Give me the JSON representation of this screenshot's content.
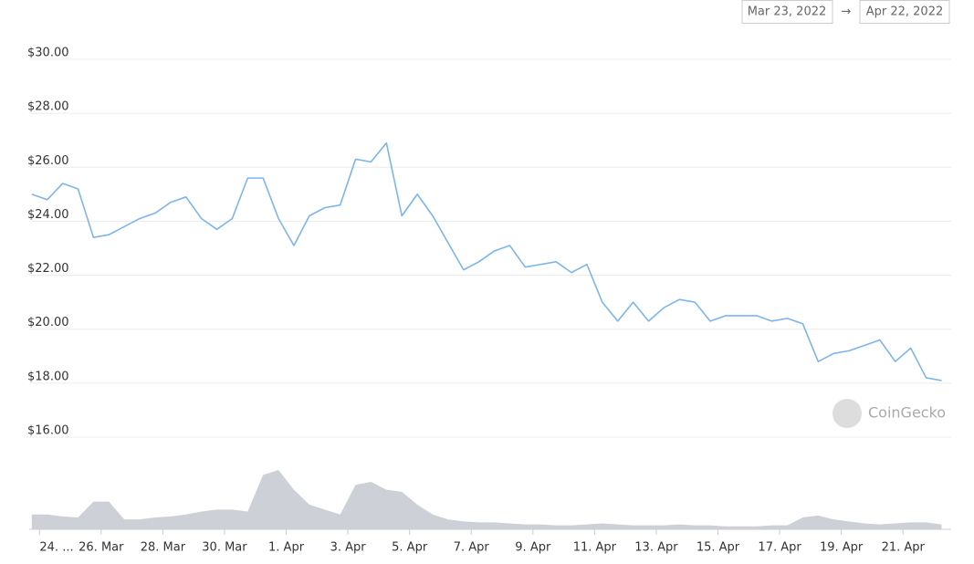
{
  "chart_data": {
    "type": "line",
    "date_from": "Mar 23, 2022",
    "date_arrow": "→",
    "date_to": "Apr 22, 2022",
    "watermark": "CoinGecko",
    "x": [
      "2022-03-23T18:00",
      "2022-03-24T06:00",
      "2022-03-24T18:00",
      "2022-03-25T06:00",
      "2022-03-25T18:00",
      "2022-03-26T06:00",
      "2022-03-26T18:00",
      "2022-03-27T06:00",
      "2022-03-27T18:00",
      "2022-03-28T06:00",
      "2022-03-28T18:00",
      "2022-03-29T06:00",
      "2022-03-29T18:00",
      "2022-03-30T06:00",
      "2022-03-30T18:00",
      "2022-03-31T06:00",
      "2022-03-31T18:00",
      "2022-04-01T06:00",
      "2022-04-01T18:00",
      "2022-04-02T06:00",
      "2022-04-02T18:00",
      "2022-04-03T06:00",
      "2022-04-03T18:00",
      "2022-04-04T06:00",
      "2022-04-04T18:00",
      "2022-04-05T06:00",
      "2022-04-05T18:00",
      "2022-04-06T06:00",
      "2022-04-06T18:00",
      "2022-04-07T06:00",
      "2022-04-07T18:00",
      "2022-04-08T06:00",
      "2022-04-08T18:00",
      "2022-04-09T06:00",
      "2022-04-09T18:00",
      "2022-04-10T06:00",
      "2022-04-10T18:00",
      "2022-04-11T06:00",
      "2022-04-11T18:00",
      "2022-04-12T06:00",
      "2022-04-12T18:00",
      "2022-04-13T06:00",
      "2022-04-13T18:00",
      "2022-04-14T06:00",
      "2022-04-14T18:00",
      "2022-04-15T06:00",
      "2022-04-15T18:00",
      "2022-04-16T06:00",
      "2022-04-16T18:00",
      "2022-04-17T06:00",
      "2022-04-17T18:00",
      "2022-04-18T06:00",
      "2022-04-18T18:00",
      "2022-04-19T06:00",
      "2022-04-19T18:00",
      "2022-04-20T06:00",
      "2022-04-20T18:00",
      "2022-04-21T06:00",
      "2022-04-21T18:00",
      "2022-04-22T06:00"
    ],
    "series": [
      {
        "color": "#7cb5ec",
        "values": [
          25.0,
          24.8,
          25.4,
          25.2,
          23.4,
          23.5,
          23.8,
          24.1,
          24.3,
          24.7,
          24.9,
          24.1,
          23.7,
          24.1,
          25.6,
          25.6,
          24.1,
          23.1,
          24.2,
          24.5,
          24.6,
          26.3,
          26.2,
          26.9,
          24.2,
          25.0,
          24.2,
          23.2,
          22.2,
          22.5,
          22.9,
          23.1,
          22.3,
          22.4,
          22.5,
          22.1,
          22.4,
          21.0,
          20.3,
          21.0,
          20.3,
          20.8,
          21.1,
          21.0,
          20.3,
          20.5,
          20.5,
          20.5,
          20.3,
          20.4,
          20.2,
          18.8,
          19.1,
          19.2,
          19.4,
          19.6,
          18.8,
          19.3,
          18.2,
          18.1
        ]
      }
    ],
    "volume": {
      "color": "#cdd0d6",
      "values": [
        15,
        15,
        13,
        12,
        28,
        28,
        10,
        10,
        12,
        13,
        15,
        18,
        20,
        20,
        18,
        55,
        60,
        40,
        25,
        20,
        15,
        45,
        48,
        40,
        38,
        25,
        15,
        10,
        8,
        7,
        7,
        6,
        5,
        5,
        4,
        4,
        5,
        6,
        5,
        4,
        4,
        4,
        5,
        4,
        4,
        3,
        3,
        3,
        4,
        4,
        12,
        14,
        10,
        8,
        6,
        5,
        6,
        7,
        7,
        5
      ]
    },
    "xlim": [
      "2022-03-23T16:00",
      "2022-04-22T13:30"
    ],
    "xticks": [
      {
        "value": "2022-03-24T00:00",
        "label": "24. ..."
      },
      {
        "value": "2022-03-26T00:00",
        "label": "26. Mar"
      },
      {
        "value": "2022-03-28T00:00",
        "label": "28. Mar"
      },
      {
        "value": "2022-03-30T00:00",
        "label": "30. Mar"
      },
      {
        "value": "2022-04-01T00:00",
        "label": "1. Apr"
      },
      {
        "value": "2022-04-03T00:00",
        "label": "3. Apr"
      },
      {
        "value": "2022-04-05T00:00",
        "label": "5. Apr"
      },
      {
        "value": "2022-04-07T00:00",
        "label": "7. Apr"
      },
      {
        "value": "2022-04-09T00:00",
        "label": "9. Apr"
      },
      {
        "value": "2022-04-11T00:00",
        "label": "11. Apr"
      },
      {
        "value": "2022-04-13T00:00",
        "label": "13. Apr"
      },
      {
        "value": "2022-04-15T00:00",
        "label": "15. Apr"
      },
      {
        "value": "2022-04-17T00:00",
        "label": "17. Apr"
      },
      {
        "value": "2022-04-19T00:00",
        "label": "19. Apr"
      },
      {
        "value": "2022-04-21T00:00",
        "label": "21. Apr"
      }
    ],
    "ylim": [
      16,
      30
    ],
    "yticks": [
      {
        "value": 16,
        "label": "$16.00"
      },
      {
        "value": 18,
        "label": "$18.00"
      },
      {
        "value": 20,
        "label": "$20.00"
      },
      {
        "value": 22,
        "label": "$22.00"
      },
      {
        "value": 24,
        "label": "$24.00"
      },
      {
        "value": 26,
        "label": "$26.00"
      },
      {
        "value": 28,
        "label": "$28.00"
      },
      {
        "value": 30,
        "label": "$30.00"
      }
    ],
    "grid": true
  }
}
